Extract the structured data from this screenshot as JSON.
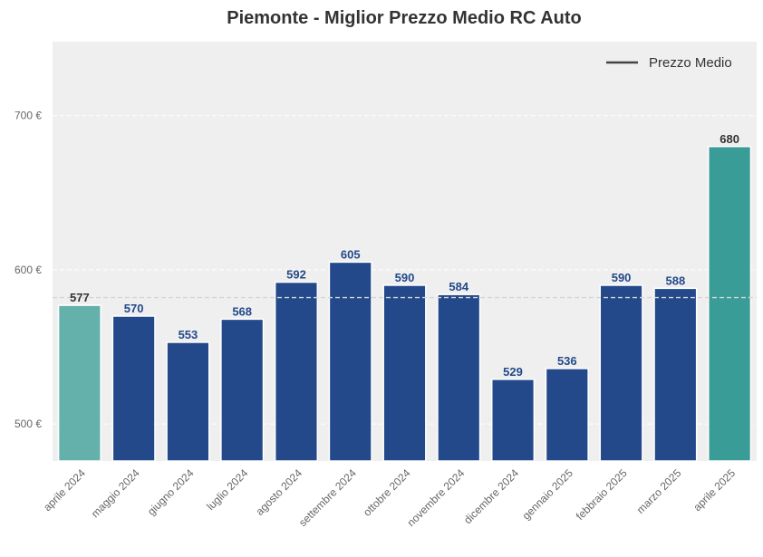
{
  "chart_data": {
    "type": "bar",
    "title": "Piemonte - Miglior Prezzo Medio RC Auto",
    "xlabel": "",
    "ylabel": "",
    "categories": [
      "aprile 2024",
      "maggio 2024",
      "giugno 2024",
      "luglio 2024",
      "agosto 2024",
      "settembre 2024",
      "ottobre 2024",
      "novembre 2024",
      "dicembre 2024",
      "gennaio 2025",
      "febbraio 2025",
      "marzo 2025",
      "aprile 2025"
    ],
    "values": [
      577,
      570,
      553,
      568,
      592,
      605,
      590,
      584,
      529,
      536,
      590,
      588,
      680
    ],
    "ylim": [
      476,
      748
    ],
    "yticks": [
      500,
      600,
      700
    ],
    "ytick_labels": [
      "500 €",
      "600 €",
      "700 €"
    ],
    "average_line": {
      "label": "Prezzo Medio",
      "value": 582
    },
    "legend": {
      "position": "top-right",
      "entries": [
        "Prezzo Medio"
      ]
    },
    "grid": true,
    "colors": {
      "bar_default": "#23498a",
      "bar_first": "#64b0ab",
      "bar_last": "#3a9c96",
      "label_default": "#23498a",
      "label_highlight": "#333333",
      "average_line": "#d6d6d6",
      "plot_background": "#efefef",
      "legend_line": "#444444"
    }
  }
}
